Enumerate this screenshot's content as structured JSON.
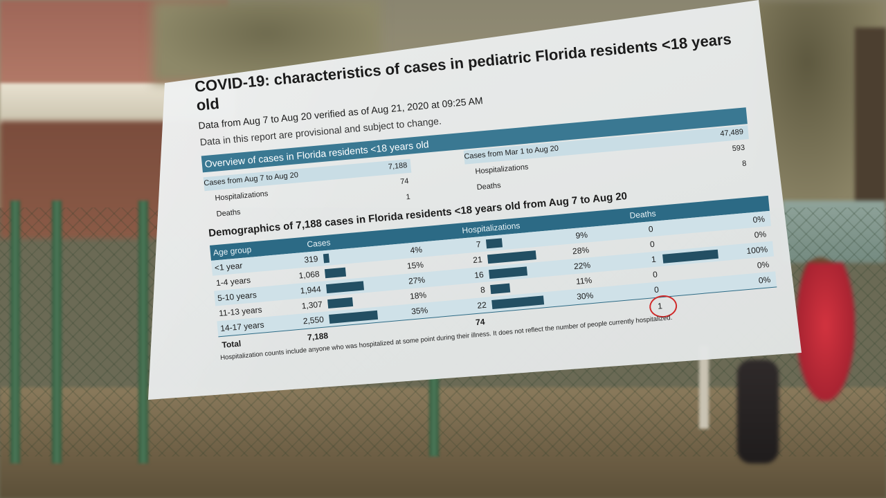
{
  "document": {
    "title": "COVID-19: characteristics of cases in pediatric Florida residents <18 years old",
    "data_range": "Data from Aug 7 to Aug 20 verified as of Aug 21, 2020 at 09:25 AM",
    "disclaimer": "Data in this report are provisional and subject to change.",
    "overview": {
      "heading": "Overview of cases in Florida residents <18 years old",
      "left": [
        {
          "label": "Cases from Aug 7 to Aug 20",
          "value": "7,188"
        },
        {
          "label": "Hospitalizations",
          "value": "74"
        },
        {
          "label": "Deaths",
          "value": "1"
        }
      ],
      "right": [
        {
          "label": "Cases from Mar 1 to Aug 20",
          "value": "47,489"
        },
        {
          "label": "Hospitalizations",
          "value": "593"
        },
        {
          "label": "Deaths",
          "value": "8"
        }
      ]
    },
    "demographics": {
      "heading": "Demographics of 7,188 cases in Florida residents <18 years old from Aug 7 to Aug 20",
      "columns": {
        "age": "Age group",
        "cases": "Cases",
        "hosp": "Hospitalizations",
        "deaths": "Deaths"
      },
      "rows": [
        {
          "age": "<1 year",
          "cases": "319",
          "cases_pct": "4%",
          "hosp": "7",
          "hosp_pct": "9%",
          "deaths": "0",
          "deaths_pct": "0%",
          "cases_frac": 0.04,
          "hosp_frac": 0.09,
          "deaths_frac": 0
        },
        {
          "age": "1-4 years",
          "cases": "1,068",
          "cases_pct": "15%",
          "hosp": "21",
          "hosp_pct": "28%",
          "deaths": "0",
          "deaths_pct": "0%",
          "cases_frac": 0.15,
          "hosp_frac": 0.28,
          "deaths_frac": 0
        },
        {
          "age": "5-10 years",
          "cases": "1,944",
          "cases_pct": "27%",
          "hosp": "16",
          "hosp_pct": "22%",
          "deaths": "1",
          "deaths_pct": "100%",
          "cases_frac": 0.27,
          "hosp_frac": 0.22,
          "deaths_frac": 1
        },
        {
          "age": "11-13 years",
          "cases": "1,307",
          "cases_pct": "18%",
          "hosp": "8",
          "hosp_pct": "11%",
          "deaths": "0",
          "deaths_pct": "0%",
          "cases_frac": 0.18,
          "hosp_frac": 0.11,
          "deaths_frac": 0
        },
        {
          "age": "14-17 years",
          "cases": "2,550",
          "cases_pct": "35%",
          "hosp": "22",
          "hosp_pct": "30%",
          "deaths": "0",
          "deaths_pct": "0%",
          "cases_frac": 0.35,
          "hosp_frac": 0.3,
          "deaths_frac": 0
        }
      ],
      "total": {
        "label": "Total",
        "cases": "7,188",
        "hosp": "74",
        "deaths": "1"
      }
    },
    "footnote": "Hospitalization counts include anyone who was hospitalized at some point during their illness. It does not reflect the number of people currently hospitalized."
  },
  "colors": {
    "band": "#3a7892",
    "header": "#2c6a85",
    "bar": "#234f63",
    "alt_row": "#cfe1e8",
    "highlight_circle": "#d02a2a"
  }
}
